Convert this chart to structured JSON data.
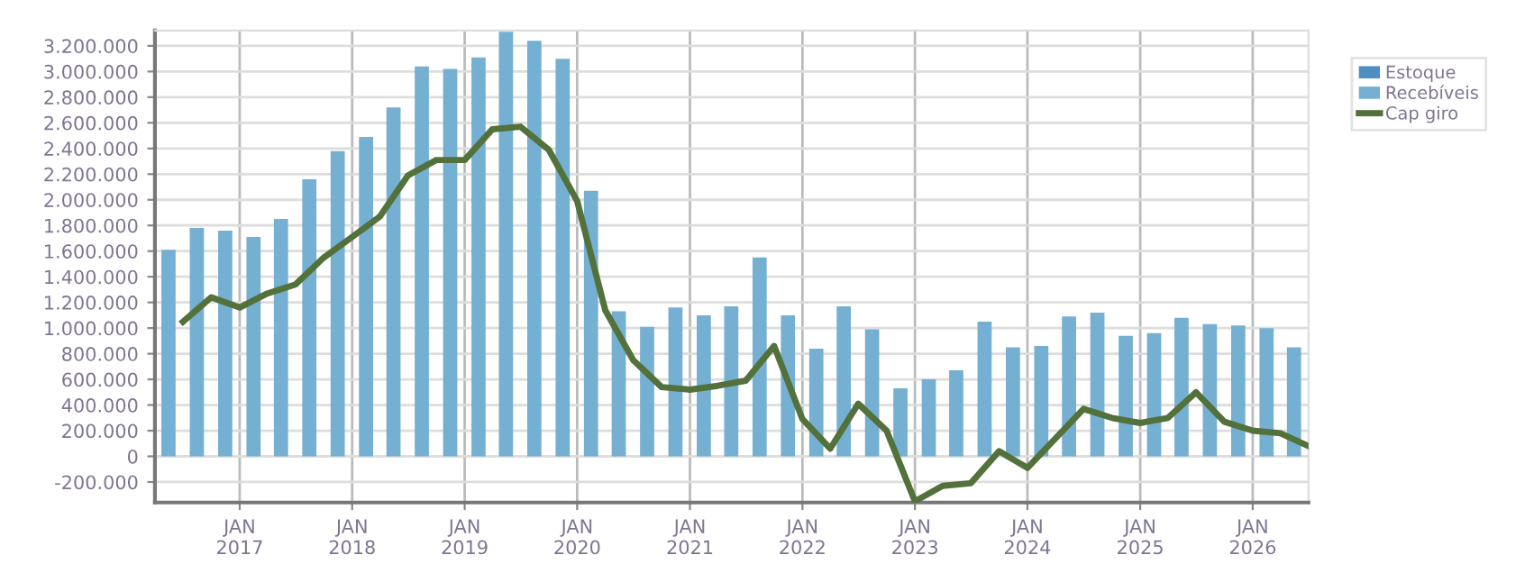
{
  "chart_data": {
    "type": "bar",
    "series": [
      {
        "name": "Estoque",
        "color": "#4f8fbf"
      },
      {
        "name": "Recebíveis",
        "color": "#75afd2",
        "x": [
          "2016-05-15",
          "2016-08-15",
          "2016-11-15",
          "2017-02-15",
          "2017-05-15",
          "2017-08-15",
          "2017-11-15",
          "2018-02-15",
          "2018-05-15",
          "2018-08-15",
          "2018-11-15",
          "2019-02-15",
          "2019-05-15",
          "2019-08-15",
          "2019-11-15",
          "2020-02-15",
          "2020-05-15",
          "2020-08-15",
          "2020-11-15",
          "2021-02-15",
          "2021-05-15",
          "2021-08-15",
          "2021-11-15",
          "2022-02-15",
          "2022-05-15",
          "2022-08-15",
          "2022-11-15",
          "2023-02-15",
          "2023-05-15",
          "2023-08-15",
          "2023-11-15",
          "2024-02-15",
          "2024-05-15",
          "2024-08-15",
          "2024-11-15",
          "2025-02-15",
          "2025-05-15",
          "2025-08-15",
          "2025-11-15",
          "2026-02-15",
          "2026-05-15"
        ],
        "values": [
          1610000,
          1780000,
          1760000,
          1710000,
          1850000,
          2160000,
          2380000,
          2490000,
          2720000,
          3040000,
          3020000,
          3110000,
          3310000,
          3240000,
          3100000,
          2070000,
          1130000,
          1010000,
          1160000,
          1100000,
          1170000,
          1550000,
          1100000,
          840000,
          1170000,
          990000,
          530000,
          600000,
          670000,
          1050000,
          850000,
          860000,
          1090000,
          1120000,
          940000,
          960000,
          1080000,
          1030000,
          1020000,
          1000000,
          850000
        ]
      },
      {
        "name": "Cap giro",
        "type": "line",
        "color": "#53713a",
        "x": [
          "2016-07-01",
          "2016-10-01",
          "2017-01-01",
          "2017-04-01",
          "2017-07-01",
          "2017-10-01",
          "2018-01-01",
          "2018-04-01",
          "2018-07-01",
          "2018-10-01",
          "2019-01-01",
          "2019-04-01",
          "2019-07-01",
          "2019-10-01",
          "2020-01-01",
          "2020-04-01",
          "2020-07-01",
          "2020-10-01",
          "2021-01-01",
          "2021-04-01",
          "2021-07-01",
          "2021-10-01",
          "2022-01-01",
          "2022-04-01",
          "2022-07-01",
          "2022-10-01",
          "2023-01-01",
          "2023-04-01",
          "2023-07-01",
          "2023-10-01",
          "2024-01-01",
          "2024-04-01",
          "2024-07-01",
          "2024-10-01",
          "2025-01-01",
          "2025-04-01",
          "2025-07-01",
          "2025-10-01",
          "2026-01-01",
          "2026-04-01",
          "2026-07-01"
        ],
        "values": [
          1050000,
          1240000,
          1160000,
          1270000,
          1340000,
          1550000,
          1710000,
          1870000,
          2190000,
          2310000,
          2310000,
          2550000,
          2570000,
          2390000,
          1990000,
          1140000,
          750000,
          540000,
          520000,
          550000,
          590000,
          860000,
          290000,
          60000,
          410000,
          200000,
          -350000,
          -230000,
          -210000,
          40000,
          -90000,
          140000,
          370000,
          300000,
          260000,
          300000,
          500000,
          270000,
          200000,
          180000,
          80000
        ]
      }
    ],
    "xlim": [
      "2016-04-01",
      "2026-07-01"
    ],
    "xticks": [
      {
        "value": "2017-01-01",
        "label": "JAN\n2017"
      },
      {
        "value": "2018-01-01",
        "label": "JAN\n2018"
      },
      {
        "value": "2019-01-01",
        "label": "JAN\n2019"
      },
      {
        "value": "2020-01-01",
        "label": "JAN\n2020"
      },
      {
        "value": "2021-01-01",
        "label": "JAN\n2021"
      },
      {
        "value": "2022-01-01",
        "label": "JAN\n2022"
      },
      {
        "value": "2023-01-01",
        "label": "JAN\n2023"
      },
      {
        "value": "2024-01-01",
        "label": "JAN\n2024"
      },
      {
        "value": "2025-01-01",
        "label": "JAN\n2025"
      },
      {
        "value": "2026-01-01",
        "label": "JAN\n2026"
      }
    ],
    "ylim": [
      -360000,
      3320000
    ],
    "yticks": [
      {
        "value": -200000,
        "label": "-200.000"
      },
      0,
      {
        "value": 200000,
        "label": "200.000"
      },
      {
        "value": 400000,
        "label": "400.000"
      },
      {
        "value": 600000,
        "label": "600.000"
      },
      {
        "value": 800000,
        "label": "800.000"
      },
      {
        "value": 1000000,
        "label": "1.000.000"
      },
      {
        "value": 1200000,
        "label": "1.200.000"
      },
      {
        "value": 1400000,
        "label": "1.400.000"
      },
      {
        "value": 1600000,
        "label": "1.600.000"
      },
      {
        "value": 1800000,
        "label": "1.800.000"
      },
      {
        "value": 2000000,
        "label": "2.000.000"
      },
      {
        "value": 2200000,
        "label": "2.200.000"
      },
      {
        "value": 2400000,
        "label": "2.400.000"
      },
      {
        "value": 2600000,
        "label": "2.600.000"
      },
      {
        "value": 2800000,
        "label": "2.800.000"
      },
      {
        "value": 3000000,
        "label": "3.000.000"
      },
      {
        "value": 3200000,
        "label": "3.200.000"
      }
    ],
    "grid": true,
    "legend": "right",
    "marker": "none",
    "line_style": "solid"
  }
}
